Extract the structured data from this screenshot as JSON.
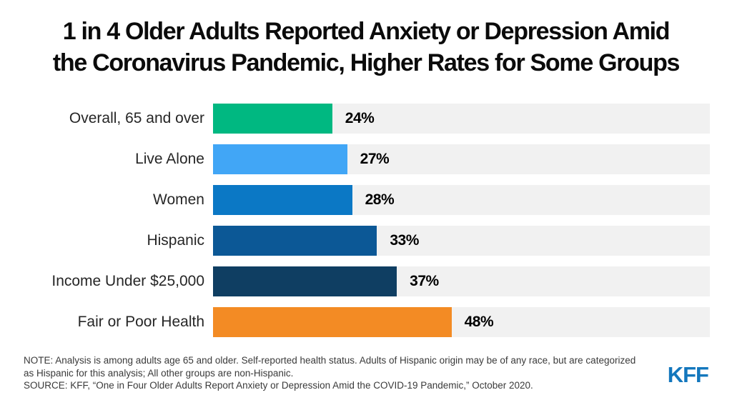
{
  "title": {
    "line1": "1 in 4 Older Adults Reported Anxiety or Depression Amid",
    "line2": "the Coronavirus Pandemic, Higher Rates for Some Groups"
  },
  "chart_data": {
    "type": "bar",
    "orientation": "horizontal",
    "title": "1 in 4 Older Adults Reported Anxiety or Depression Amid the Coronavirus Pandemic, Higher Rates for Some Groups",
    "categories": [
      "Overall, 65 and over",
      "Live Alone",
      "Women",
      "Hispanic",
      "Income Under $25,000",
      "Fair or Poor Health"
    ],
    "values": [
      24,
      27,
      28,
      33,
      37,
      48
    ],
    "value_labels": [
      "24%",
      "27%",
      "28%",
      "33%",
      "37%",
      "48%"
    ],
    "bar_colors": [
      "#00b881",
      "#41a6f6",
      "#0b78c5",
      "#0c5896",
      "#0f3e62",
      "#f38b24"
    ],
    "track_color": "#f1f1f1",
    "xlim": [
      0,
      100
    ],
    "grid": false,
    "legend": false,
    "value_label_position": "right-of-bar"
  },
  "footer": {
    "note_line1": "NOTE: Analysis is among adults age 65 and older. Self-reported health status. Adults of Hispanic origin may be of any race, but are categorized",
    "note_line2": "as Hispanic for this analysis; All other groups are non-Hispanic.",
    "source_line": "SOURCE: KFF, “One in Four Older Adults Report Anxiety or Depression Amid the COVID-19 Pandemic,” October 2020.",
    "logo_text": "KFF",
    "logo_color": "#1377bd"
  }
}
